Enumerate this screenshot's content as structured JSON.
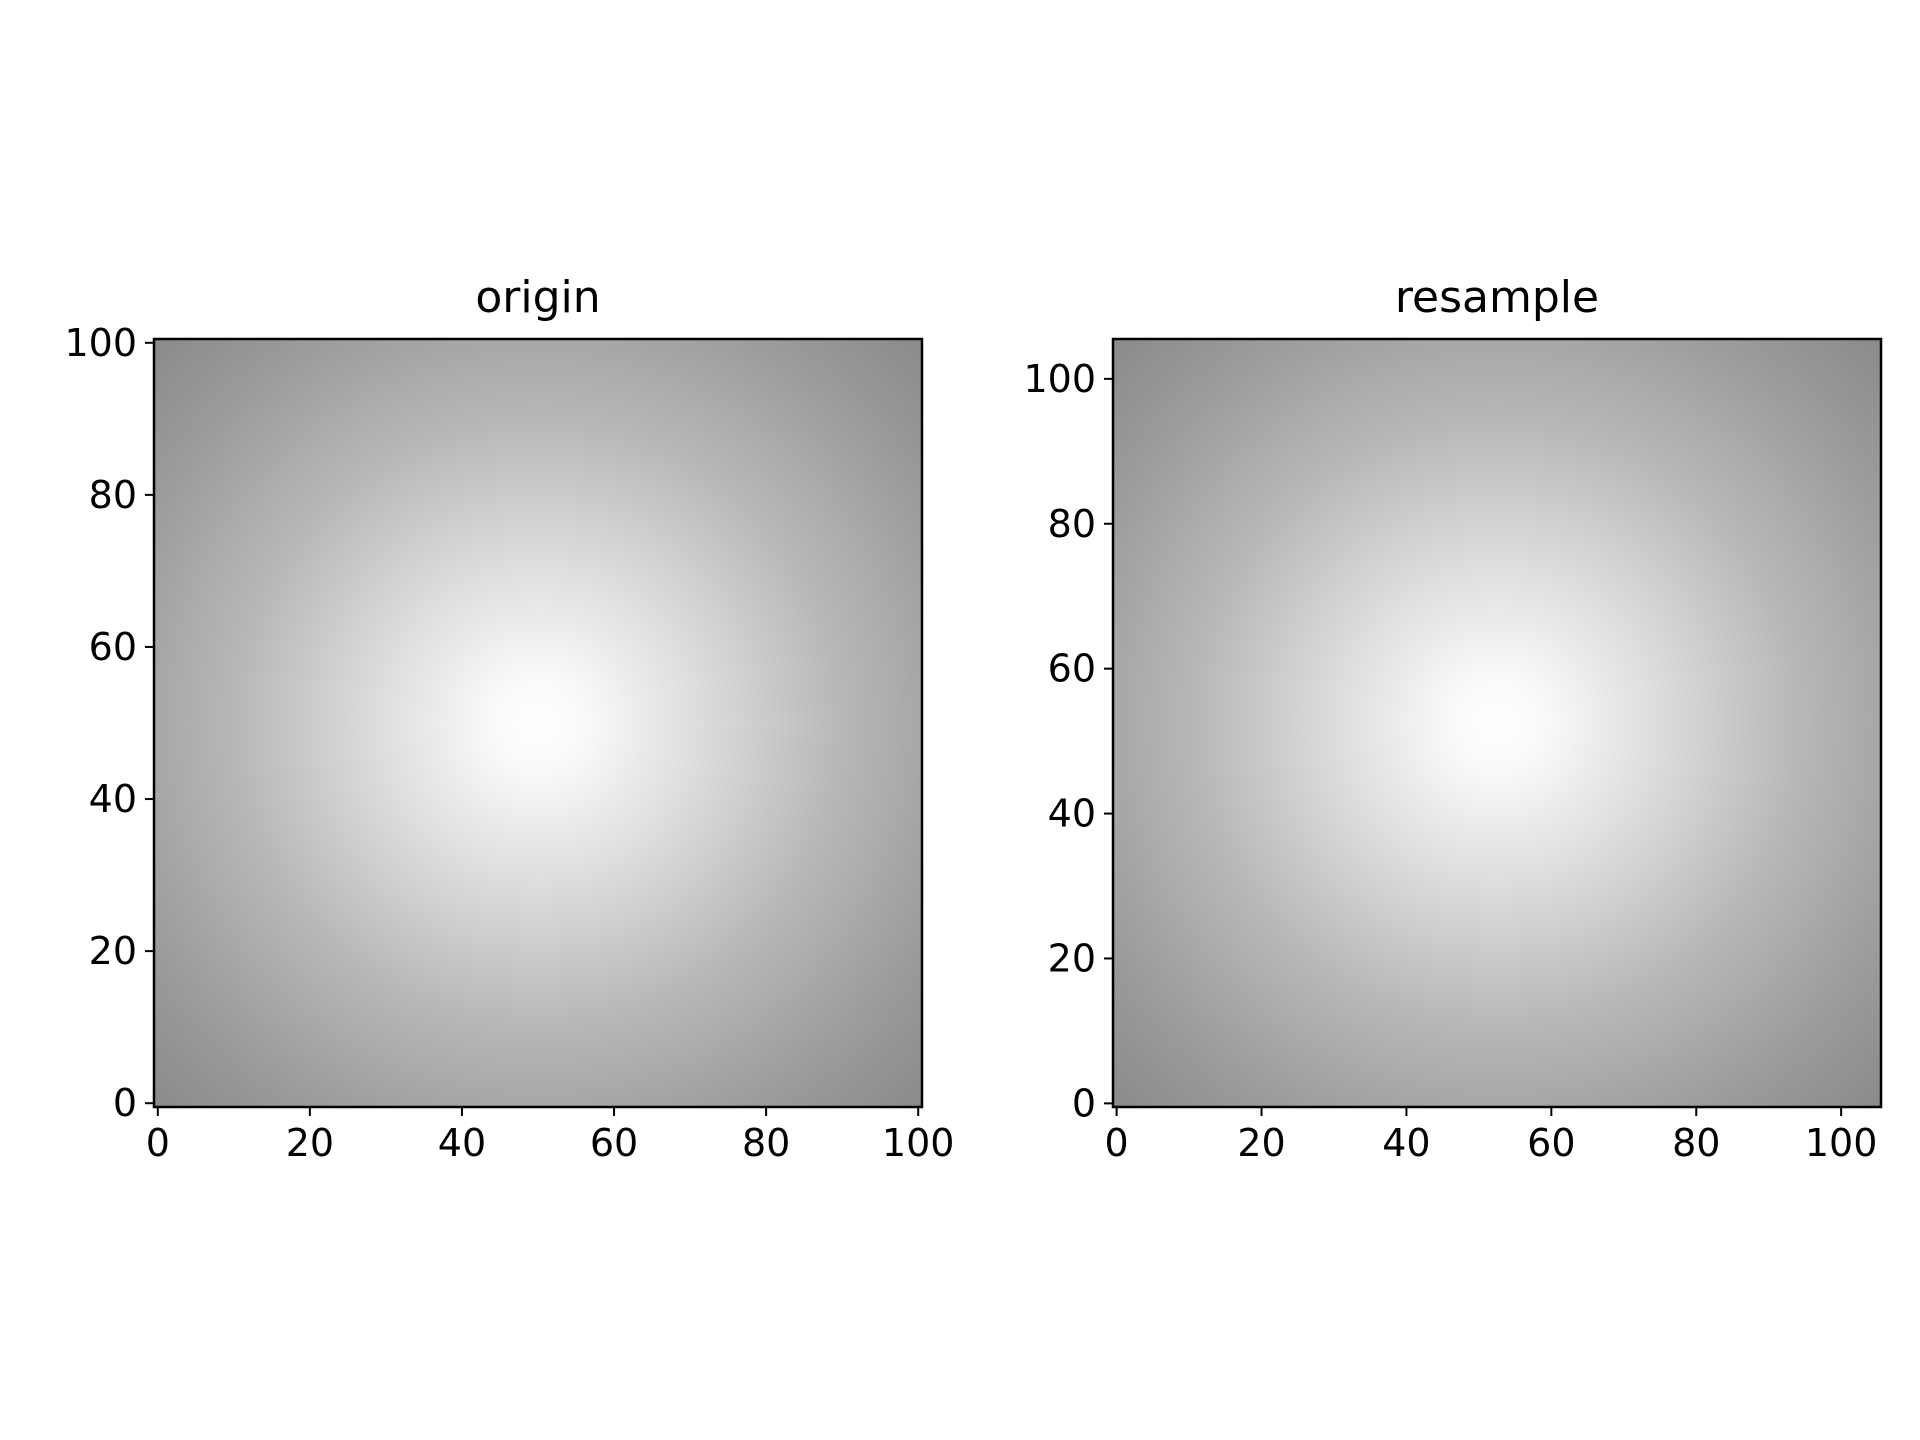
{
  "chart_data": [
    {
      "type": "heatmap",
      "title": "origin",
      "colormap": "gray",
      "pattern": "radial distance from center, brightest at center",
      "center": [
        50,
        50
      ],
      "xlim": [
        -0.5,
        100.5
      ],
      "ylim": [
        -0.5,
        100.5
      ],
      "xticks": [
        0,
        20,
        40,
        60,
        80,
        100
      ],
      "yticks": [
        0,
        20,
        40,
        60,
        80,
        100
      ],
      "value_range": [
        0.5,
        1.0
      ],
      "grid": false
    },
    {
      "type": "heatmap",
      "title": "resample",
      "colormap": "gray",
      "pattern": "radial distance from center, brightest at center",
      "center": [
        52.5,
        52.5
      ],
      "xlim": [
        -0.5,
        105.5
      ],
      "ylim": [
        -0.5,
        105.5
      ],
      "xticks": [
        0,
        20,
        40,
        60,
        80,
        100
      ],
      "yticks": [
        0,
        20,
        40,
        60,
        80,
        100
      ],
      "value_range": [
        0.5,
        1.0
      ],
      "grid": false
    }
  ]
}
